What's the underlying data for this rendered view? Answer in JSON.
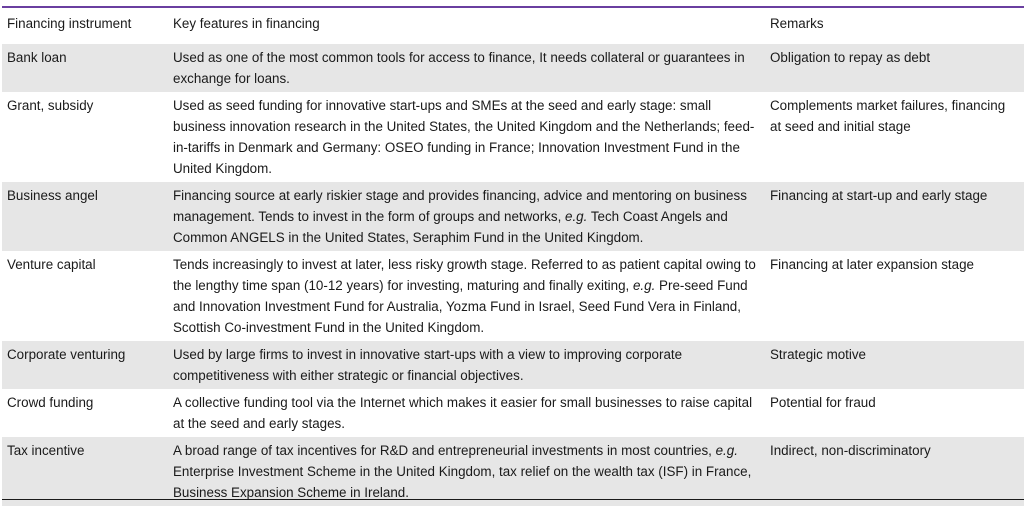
{
  "table": {
    "headers": [
      "Financing instrument",
      "Key features in financing",
      "Remarks"
    ],
    "rows": [
      {
        "instrument": "Bank loan",
        "features": [
          {
            "t": "Used as one of the most common tools for access to finance, It needs collateral or guarantees in exchange for loans."
          }
        ],
        "remarks": "Obligation to repay as debt"
      },
      {
        "instrument": "Grant, subsidy",
        "features": [
          {
            "t": "Used as seed funding for innovative start-ups and SMEs at the seed and early stage: small business innovation research in the United States, the United Kingdom and the Netherlands; feed-in-tariffs in Denmark and Germany: OSEO funding in France; Innovation Investment Fund in the United Kingdom."
          }
        ],
        "remarks": "Complements market failures, financing at seed and initial stage"
      },
      {
        "instrument": "Business angel",
        "features": [
          {
            "t": "Financing source at early riskier stage and provides financing, advice and mentoring on business management. Tends to invest in the form of groups and networks, "
          },
          {
            "t": "e.g.",
            "i": true
          },
          {
            "t": " Tech Coast Angels and Common ANGELS in the United States, Seraphim Fund in the United Kingdom."
          }
        ],
        "remarks": "Financing at start-up and early stage"
      },
      {
        "instrument": "Venture capital",
        "features": [
          {
            "t": "Tends increasingly to invest at later, less risky growth stage. Referred to as patient capital owing to the lengthy time span (10-12 years) for investing, maturing and finally exiting, "
          },
          {
            "t": "e.g.",
            "i": true
          },
          {
            "t": " Pre-seed Fund and Innovation Investment Fund for Australia, Yozma Fund in Israel, Seed Fund Vera in Finland, Scottish Co-investment Fund in the United Kingdom."
          }
        ],
        "remarks": "Financing at later expansion stage"
      },
      {
        "instrument": "Corporate venturing",
        "features": [
          {
            "t": "Used by large firms to invest in innovative start-ups with a view to improving corporate competitiveness with either strategic or financial objectives."
          }
        ],
        "remarks": "Strategic motive"
      },
      {
        "instrument": "Crowd funding",
        "features": [
          {
            "t": "A collective funding tool via the Internet which makes it easier for small businesses to raise capital at the seed and early stages."
          }
        ],
        "remarks": "Potential for fraud"
      },
      {
        "instrument": "Tax incentive",
        "features": [
          {
            "t": "A broad range of tax incentives for R&D and entrepreneurial investments in most countries, "
          },
          {
            "t": "e.g.",
            "i": true
          },
          {
            "t": " Enterprise Investment Scheme in the United Kingdom, tax relief on the wealth tax (ISF) in France, Business Expansion Scheme in Ireland."
          }
        ],
        "remarks": "Indirect, non-discriminatory"
      }
    ]
  }
}
